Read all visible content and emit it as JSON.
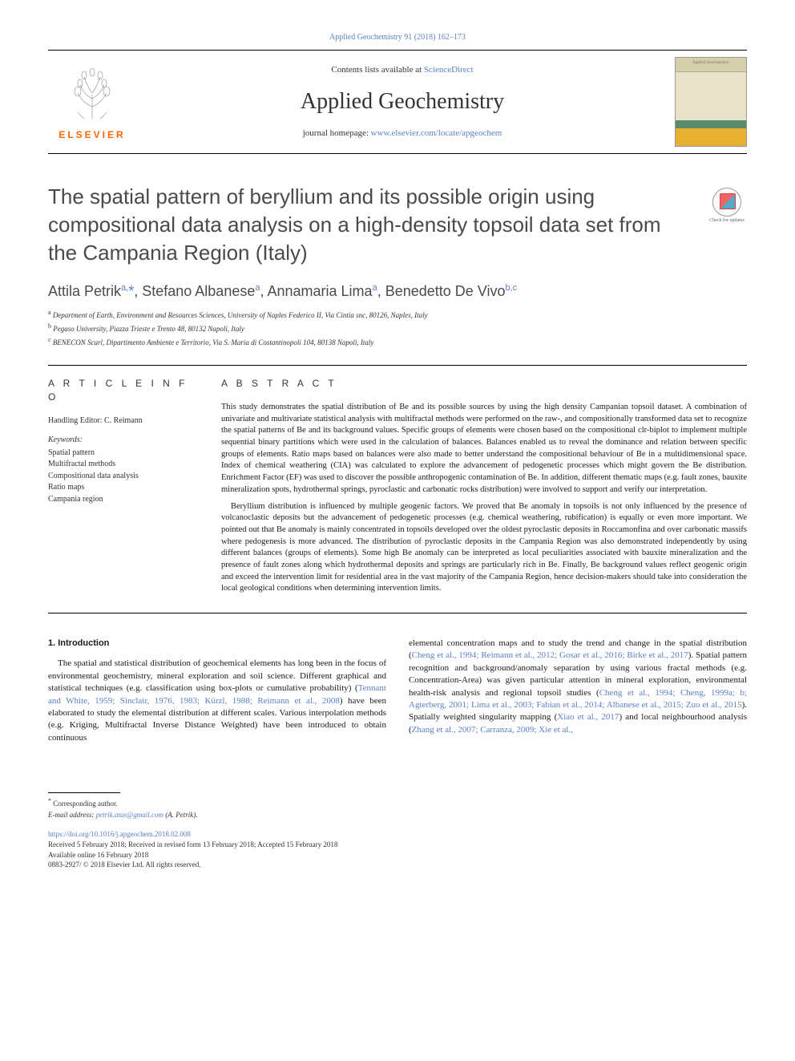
{
  "journal_ref": "Applied Geochemistry 91 (2018) 162–173",
  "header": {
    "contents_prefix": "Contents lists available at ",
    "contents_link": "ScienceDirect",
    "journal_name": "Applied Geochemistry",
    "homepage_prefix": "journal homepage: ",
    "homepage_link": "www.elsevier.com/locate/apgeochem",
    "elsevier_label": "ELSEVIER",
    "cover_text": "Applied Geochemistry"
  },
  "check_updates": "Check for updates",
  "title": "The spatial pattern of beryllium and its possible origin using compositional data analysis on a high-density topsoil data set from the Campania Region (Italy)",
  "authors_html": "Attila Petrik<sup>a,</sup><span class='ast'>*</span>, Stefano Albanese<sup>a</sup>, Annamaria Lima<sup>a</sup>, Benedetto De Vivo<sup>b,c</sup>",
  "affiliations": [
    {
      "sup": "a",
      "text": "Department of Earth, Environment and Resources Sciences, University of Naples Federico II, Via Cintia snc, 80126, Naples, Italy"
    },
    {
      "sup": "b",
      "text": "Pegaso University, Piazza Trieste e Trento 48, 80132 Napoli, Italy"
    },
    {
      "sup": "c",
      "text": "BENECON Scarl, Dipartimento Ambiente e Territorio, Via S. Maria di Costantinopoli 104, 80138 Napoli, Italy"
    }
  ],
  "info": {
    "head": "A R T I C L E  I N F O",
    "handling": "Handling Editor: C. Reimann",
    "kw_label": "Keywords:",
    "keywords": [
      "Spatial pattern",
      "Multifractal methods",
      "Compositional data analysis",
      "Ratio maps",
      "Campania region"
    ]
  },
  "abstract": {
    "head": "A B S T R A C T",
    "p1": "This study demonstrates the spatial distribution of Be and its possible sources by using the high density Campanian topsoil dataset. A combination of univariate and multivariate statistical analysis with multifractal methods were performed on the raw-, and compositionally transformed data set to recognize the spatial patterns of Be and its background values. Specific groups of elements were chosen based on the compositional clr-biplot to implement multiple sequential binary partitions which were used in the calculation of balances. Balances enabled us to reveal the dominance and relation between specific groups of elements. Ratio maps based on balances were also made to better understand the compositional behaviour of Be in a multidimensional space. Index of chemical weathering (CIA) was calculated to explore the advancement of pedogenetic processes which might govern the Be distribution. Enrichment Factor (EF) was used to discover the possible anthropogenic contamination of Be. In addition, different thematic maps (e.g. fault zones, bauxite mineralization spots, hydrothermal springs, pyroclastic and carbonatic rocks distribution) were involved to support and verify our interpretation.",
    "p2": "Beryllium distribution is influenced by multiple geogenic factors. We proved that Be anomaly in topsoils is not only influenced by the presence of volcanoclastic deposits but the advancement of pedogenetic processes (e.g. chemical weathering, rubification) is equally or even more important. We pointed out that Be anomaly is mainly concentrated in topsoils developed over the oldest pyroclastic deposits in Roccamonfina and over carbonatic massifs where pedogenesis is more advanced. The distribution of pyroclastic deposits in the Campania Region was also demonstrated independently by using different balances (groups of elements). Some high Be anomaly can be interpreted as local peculiarities associated with bauxite mineralization and the presence of fault zones along which hydrothermal deposits and springs are particularly rich in Be. Finally, Be background values reflect geogenic origin and exceed the intervention limit for residential area in the vast majority of the Campania Region, hence decision-makers should take into consideration the local geological conditions when determining intervention limits."
  },
  "body": {
    "sec1_head": "1. Introduction",
    "col1_p1_pre": "The spatial and statistical distribution of geochemical elements has long been in the focus of environmental geochemistry, mineral exploration and soil science. Different graphical and statistical techniques (e.g. classification using box-plots or cumulative probability) (",
    "col1_link1": "Tennant and White, 1959; Sinclair, 1976, 1983; Kürzl, 1988; Reimann et al., 2008",
    "col1_p1_post": ") have been elaborated to study the elemental distribution at different scales. Various interpolation methods (e.g. Kriging, Multifractal Inverse Distance Weighted) have been introduced to obtain continuous",
    "col2_p1_pre": "elemental concentration maps and to study the trend and change in the spatial distribution (",
    "col2_link1": "Cheng et al., 1994; Reimann et al., 2012; Gosar et al., 2016; Birke et al., 2017",
    "col2_p1_mid": "). Spatial pattern recognition and background/anomaly separation by using various fractal methods (e.g. Concentration-Area) was given particular attention in mineral exploration, environmental health-risk analysis and regional topsoil studies (",
    "col2_link2": "Cheng et al., 1994; Cheng, 1999a; b; Agterberg, 2001; Lima et al., 2003; Fabian et al., 2014; Albanese et al., 2015; Zuo et al., 2015",
    "col2_p1_mid2": "). Spatially weighted singularity mapping (",
    "col2_link3": "Xiao et al., 2017",
    "col2_p1_mid3": ") and local neighbourhood analysis (",
    "col2_link4": "Zhang et al., 2007; Carranza, 2009; Xie et al.,"
  },
  "footer": {
    "corr": "Corresponding author.",
    "email_label": "E-mail address:",
    "email": "petrik.atus@gmail.com",
    "email_suffix": "(A. Petrik).",
    "doi": "https://doi.org/10.1016/j.apgeochem.2018.02.008",
    "received": "Received 5 February 2018; Received in revised form 13 February 2018; Accepted 15 February 2018",
    "available": "Available online 16 February 2018",
    "copyright": "0883-2927/ © 2018 Elsevier Ltd. All rights reserved."
  },
  "colors": {
    "link": "#5a7fc4",
    "elsevier_orange": "#ff6600",
    "text_gray": "#4a4a4a"
  }
}
